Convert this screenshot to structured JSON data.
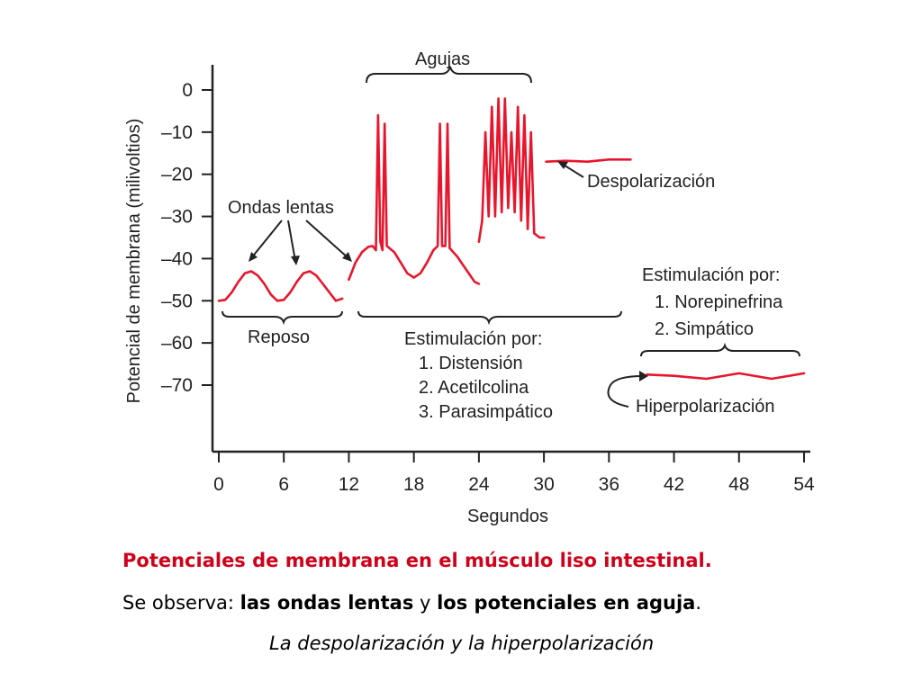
{
  "chart_data": {
    "type": "line",
    "ylabel": "Potencial de membrana (milivoltios)",
    "xlabel": "Segundos",
    "ylim": [
      -85,
      2
    ],
    "xlim": [
      0,
      54
    ],
    "yticks": [
      "0",
      "–10",
      "–20",
      "–30",
      "–40",
      "–50",
      "–60",
      "–70"
    ],
    "ytick_values": [
      0,
      -10,
      -20,
      -30,
      -40,
      -50,
      -60,
      -70
    ],
    "xticks": [
      "0",
      "6",
      "12",
      "18",
      "24",
      "30",
      "36",
      "42",
      "48",
      "54"
    ],
    "xtick_values": [
      0,
      6,
      12,
      18,
      24,
      30,
      36,
      42,
      48,
      54
    ],
    "line_color": "#e8162c",
    "series": [
      {
        "points": [
          [
            0,
            -50
          ],
          [
            0.6,
            -49.8
          ],
          [
            1.2,
            -48
          ],
          [
            1.8,
            -45.5
          ],
          [
            2.4,
            -43.5
          ],
          [
            3,
            -43
          ],
          [
            3.6,
            -44
          ],
          [
            4.2,
            -46
          ],
          [
            4.8,
            -48.5
          ],
          [
            5.4,
            -50
          ],
          [
            6,
            -49.8
          ],
          [
            6.6,
            -48
          ],
          [
            7.2,
            -45.5
          ],
          [
            7.8,
            -43.5
          ],
          [
            8.4,
            -43
          ],
          [
            9,
            -44
          ],
          [
            9.6,
            -46
          ],
          [
            10.2,
            -48
          ],
          [
            10.8,
            -50
          ],
          [
            11.4,
            -49.5
          ]
        ]
      },
      {
        "points": [
          [
            12,
            -45
          ],
          [
            12.6,
            -41
          ],
          [
            13.2,
            -38.5
          ],
          [
            13.8,
            -37.2
          ],
          [
            14.2,
            -37
          ],
          [
            14.5,
            -38
          ],
          [
            14.7,
            -6
          ],
          [
            14.9,
            -36
          ],
          [
            15.1,
            -38
          ],
          [
            15.3,
            -8
          ],
          [
            15.5,
            -37
          ],
          [
            16.2,
            -38.5
          ],
          [
            16.8,
            -41
          ],
          [
            17.4,
            -43.5
          ],
          [
            18,
            -44.5
          ],
          [
            18.6,
            -43.5
          ],
          [
            19.2,
            -41
          ],
          [
            19.8,
            -38
          ],
          [
            20.2,
            -37
          ],
          [
            20.4,
            -8
          ],
          [
            20.6,
            -37
          ],
          [
            20.9,
            -37
          ],
          [
            21.1,
            -8
          ],
          [
            21.3,
            -37.5
          ],
          [
            22,
            -39.5
          ],
          [
            22.8,
            -42.5
          ],
          [
            23.6,
            -45.5
          ],
          [
            24,
            -46
          ]
        ]
      },
      {
        "points": [
          [
            24,
            -36
          ],
          [
            24.3,
            -31
          ],
          [
            24.6,
            -10
          ],
          [
            24.9,
            -30
          ],
          [
            25.2,
            -4
          ],
          [
            25.5,
            -30
          ],
          [
            25.8,
            -2
          ],
          [
            26.1,
            -29
          ],
          [
            26.4,
            -2
          ],
          [
            26.7,
            -28
          ],
          [
            27,
            -10
          ],
          [
            27.3,
            -29
          ],
          [
            27.6,
            -4
          ],
          [
            27.9,
            -31
          ],
          [
            28.2,
            -6
          ],
          [
            28.5,
            -33
          ],
          [
            28.8,
            -10
          ],
          [
            29.1,
            -34
          ],
          [
            29.6,
            -35
          ],
          [
            30,
            -35
          ]
        ]
      },
      {
        "points": [
          [
            30.2,
            -17
          ],
          [
            32,
            -16.8
          ],
          [
            34,
            -17
          ],
          [
            36,
            -16.5
          ],
          [
            38,
            -16.5
          ]
        ]
      },
      {
        "points": [
          [
            39.5,
            -67.5
          ],
          [
            42,
            -67.8
          ],
          [
            45,
            -68.5
          ],
          [
            48,
            -67.2
          ],
          [
            51,
            -68.5
          ],
          [
            54,
            -67.2
          ]
        ]
      }
    ],
    "annotations": {
      "ondas_lentas": "Ondas lentas",
      "agujas": "Agujas",
      "despolarizacion": "Despolarización",
      "reposo": "Reposo",
      "estim1": [
        "Estimulación por:",
        "1. Distensión",
        "2. Acetilcolina",
        "3. Parasimpático"
      ],
      "estim2": [
        "Estimulación por:",
        "1. Norepinefrina",
        "2. Simpático"
      ],
      "hiperpolarizacion": "Hiperpolarización"
    }
  },
  "caption": {
    "line1": "Potenciales de membrana en el músculo liso intestinal.",
    "line2_prefix": "Se observa: ",
    "line2_bold1": "las ondas lentas",
    "line2_mid": " y ",
    "line2_bold2": "los potenciales en aguja",
    "line2_end": ".",
    "line3": "La despolarización y la hiperpolarización"
  }
}
